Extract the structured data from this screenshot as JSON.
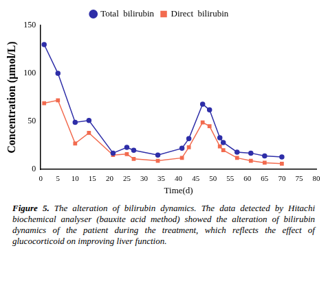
{
  "chart_data": {
    "type": "line",
    "x_label": "Time(d)",
    "y_label": "Concentration (μmol/L)",
    "x": [
      1,
      5,
      10,
      14,
      21,
      25,
      27,
      34,
      41,
      43,
      47,
      49,
      52,
      53,
      57,
      61,
      65,
      70
    ],
    "series": [
      {
        "name": "Total  bilirubin",
        "color": "#2e2ea8",
        "marker": "circle",
        "values": [
          130,
          100,
          49,
          51,
          17,
          23,
          20,
          15,
          22,
          32,
          68,
          62,
          33,
          28,
          18,
          17,
          14,
          13
        ]
      },
      {
        "name": "Direct  bilirubin",
        "color": "#f26b4f",
        "marker": "square",
        "values": [
          69,
          72,
          27,
          38,
          15,
          16,
          11,
          9,
          12,
          23,
          49,
          45,
          24,
          20,
          12,
          9,
          7,
          6
        ]
      }
    ],
    "xlim": [
      0,
      80
    ],
    "xticks": [
      0,
      5,
      10,
      15,
      20,
      25,
      30,
      35,
      40,
      45,
      50,
      55,
      60,
      65,
      70,
      75,
      80
    ],
    "ylim": [
      0,
      150
    ],
    "yticks": [
      0,
      50,
      100,
      150
    ],
    "grid": false,
    "legend": "top",
    "caption": {
      "label": "Figure 5.",
      "text": "The alteration of bilirubin dynamics. The data detected by Hitachi biochemical analyser (bauxite acid method) showed the alteration of bilirubin dynamics of the patient during the treatment, which reflects the effect of glucocorticoid on improving liver function."
    }
  }
}
